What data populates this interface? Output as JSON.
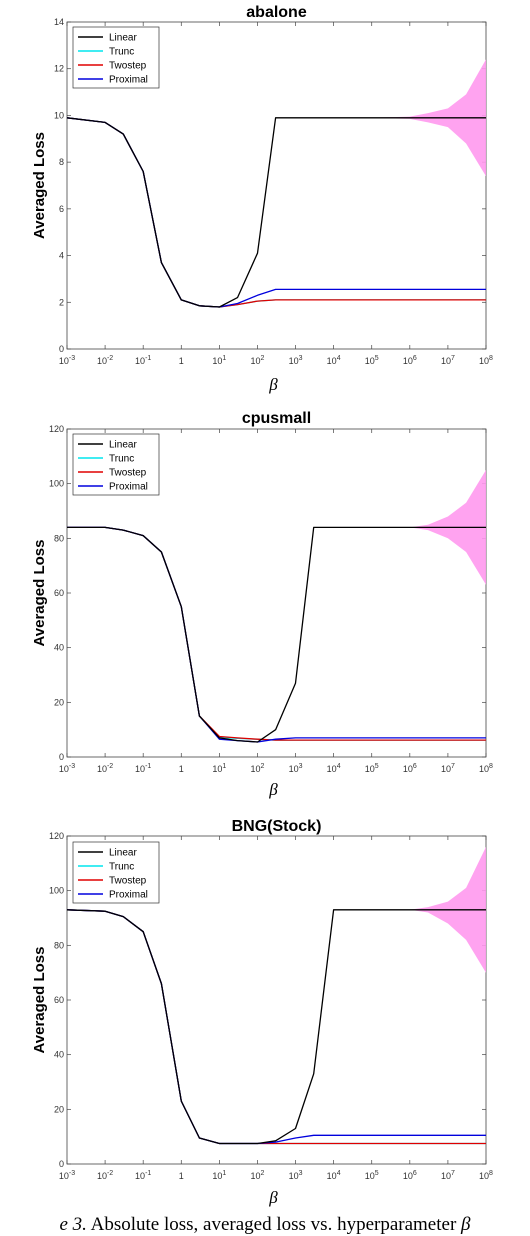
{
  "caption": {
    "prefix": "e 3.",
    "text": " Absolute loss, averaged loss vs. hyperparameter ",
    "symbol": "β"
  },
  "colors": {
    "Linear": "#000000",
    "Trunc": "#00e5ee",
    "Twostep": "#e00000",
    "Proximal": "#0000dd",
    "band": "#ff99ee"
  },
  "chart_data": [
    {
      "type": "line",
      "title": "abalone",
      "xlabel": "β",
      "ylabel": "Averaged Loss",
      "xscale": "log",
      "xlim": [
        0.001,
        100000000
      ],
      "ylim": [
        0,
        14
      ],
      "yticks": [
        0,
        2,
        4,
        6,
        8,
        10,
        12,
        14
      ],
      "ytick_labels": [
        "0",
        "2",
        "4",
        "6",
        "8",
        "10",
        "12",
        "14"
      ],
      "xticks": [
        0.001,
        0.01,
        0.1,
        1,
        10,
        100,
        1000,
        10000,
        100000,
        1000000,
        10000000,
        100000000
      ],
      "xtick_labels": [
        {
          "base": "10",
          "exp": "-3"
        },
        {
          "base": "10",
          "exp": "-2"
        },
        {
          "base": "10",
          "exp": "-1"
        },
        {
          "base": "1",
          "exp": ""
        },
        {
          "base": "10",
          "exp": "1"
        },
        {
          "base": "10",
          "exp": "2"
        },
        {
          "base": "10",
          "exp": "3"
        },
        {
          "base": "10",
          "exp": "4"
        },
        {
          "base": "10",
          "exp": "5"
        },
        {
          "base": "10",
          "exp": "6"
        },
        {
          "base": "10",
          "exp": "7"
        },
        {
          "base": "10",
          "exp": "8"
        }
      ],
      "legend": {
        "position": "top-left",
        "entries": [
          "Linear",
          "Trunc",
          "Twostep",
          "Proximal"
        ]
      },
      "series": [
        {
          "name": "Linear",
          "x": [
            0.001,
            0.01,
            0.03,
            0.1,
            0.3,
            1,
            3,
            10,
            30,
            100,
            300,
            1000,
            100000000
          ],
          "y": [
            9.9,
            9.7,
            9.2,
            7.6,
            3.7,
            2.1,
            1.85,
            1.8,
            2.2,
            4.1,
            9.9,
            9.9,
            9.9
          ]
        },
        {
          "name": "Trunc",
          "x": [
            0.001,
            0.01,
            0.03,
            0.1,
            0.3,
            1,
            3,
            10,
            30,
            100,
            300,
            1000,
            100000000
          ],
          "y": [
            9.9,
            9.7,
            9.2,
            7.6,
            3.7,
            2.1,
            1.85,
            1.8,
            1.9,
            2.05,
            2.1,
            2.1,
            2.1
          ]
        },
        {
          "name": "Twostep",
          "x": [
            0.001,
            0.01,
            0.03,
            0.1,
            0.3,
            1,
            3,
            10,
            30,
            100,
            300,
            1000,
            100000000
          ],
          "y": [
            9.9,
            9.7,
            9.2,
            7.6,
            3.7,
            2.1,
            1.85,
            1.8,
            1.9,
            2.05,
            2.1,
            2.1,
            2.1
          ]
        },
        {
          "name": "Proximal",
          "x": [
            0.001,
            0.01,
            0.03,
            0.1,
            0.3,
            1,
            3,
            10,
            30,
            100,
            300,
            1000,
            100000000
          ],
          "y": [
            9.9,
            9.7,
            9.2,
            7.6,
            3.7,
            2.1,
            1.85,
            1.8,
            1.95,
            2.3,
            2.55,
            2.55,
            2.55
          ]
        }
      ],
      "band": {
        "x": [
          100000,
          1000000,
          3000000,
          10000000,
          30000000,
          100000000
        ],
        "lower": [
          9.9,
          9.85,
          9.7,
          9.5,
          8.8,
          7.4
        ],
        "upper": [
          9.9,
          9.95,
          10.1,
          10.3,
          10.9,
          12.4
        ]
      }
    },
    {
      "type": "line",
      "title": "cpusmall",
      "xlabel": "β",
      "ylabel": "Averaged Loss",
      "xscale": "log",
      "xlim": [
        0.001,
        100000000
      ],
      "ylim": [
        0,
        120
      ],
      "yticks": [
        0,
        20,
        40,
        60,
        80,
        100,
        120
      ],
      "ytick_labels": [
        "0",
        "20",
        "40",
        "60",
        "80",
        "100",
        "120"
      ],
      "xticks": [
        0.001,
        0.01,
        0.1,
        1,
        10,
        100,
        1000,
        10000,
        100000,
        1000000,
        10000000,
        100000000
      ],
      "xtick_labels": [
        {
          "base": "10",
          "exp": "-3"
        },
        {
          "base": "10",
          "exp": "-2"
        },
        {
          "base": "10",
          "exp": "-1"
        },
        {
          "base": "1",
          "exp": ""
        },
        {
          "base": "10",
          "exp": "1"
        },
        {
          "base": "10",
          "exp": "2"
        },
        {
          "base": "10",
          "exp": "3"
        },
        {
          "base": "10",
          "exp": "4"
        },
        {
          "base": "10",
          "exp": "5"
        },
        {
          "base": "10",
          "exp": "6"
        },
        {
          "base": "10",
          "exp": "7"
        },
        {
          "base": "10",
          "exp": "8"
        }
      ],
      "legend": {
        "position": "top-left",
        "entries": [
          "Linear",
          "Trunc",
          "Twostep",
          "Proximal"
        ]
      },
      "series": [
        {
          "name": "Linear",
          "x": [
            0.001,
            0.01,
            0.03,
            0.1,
            0.3,
            1,
            3,
            10,
            30,
            100,
            300,
            1000,
            3000,
            100000000
          ],
          "y": [
            84,
            84,
            83,
            81,
            75,
            55,
            15,
            7,
            6,
            5.5,
            10,
            27,
            84,
            84
          ]
        },
        {
          "name": "Trunc",
          "x": [
            0.001,
            0.01,
            0.03,
            0.1,
            0.3,
            1,
            3,
            10,
            30,
            100,
            300,
            1000,
            3000,
            100000000
          ],
          "y": [
            84,
            84,
            83,
            81,
            75,
            55,
            15,
            7.2,
            6.8,
            6.5,
            6.2,
            6.2,
            6.2,
            6.2
          ]
        },
        {
          "name": "Twostep",
          "x": [
            0.001,
            0.01,
            0.03,
            0.1,
            0.3,
            1,
            3,
            10,
            30,
            100,
            300,
            1000,
            3000,
            100000000
          ],
          "y": [
            84,
            84,
            83,
            81,
            75,
            55,
            15,
            7.5,
            7,
            6.5,
            6.2,
            6.2,
            6.2,
            6.2
          ]
        },
        {
          "name": "Proximal",
          "x": [
            0.001,
            0.01,
            0.03,
            0.1,
            0.3,
            1,
            3,
            10,
            30,
            100,
            300,
            1000,
            3000,
            100000000
          ],
          "y": [
            84,
            84,
            83,
            81,
            75,
            55,
            15,
            6.5,
            6,
            5.5,
            6.5,
            7,
            7,
            7
          ]
        }
      ],
      "band": {
        "x": [
          1000000,
          3000000,
          10000000,
          30000000,
          100000000
        ],
        "lower": [
          84,
          83,
          80,
          75,
          63
        ],
        "upper": [
          84,
          85,
          88,
          93,
          105
        ]
      }
    },
    {
      "type": "line",
      "title": "BNG(Stock)",
      "xlabel": "β",
      "ylabel": "Averaged Loss",
      "xscale": "log",
      "xlim": [
        0.001,
        100000000
      ],
      "ylim": [
        0,
        120
      ],
      "yticks": [
        0,
        20,
        40,
        60,
        80,
        100,
        120
      ],
      "ytick_labels": [
        "0",
        "20",
        "40",
        "60",
        "80",
        "100",
        "120"
      ],
      "xticks": [
        0.001,
        0.01,
        0.1,
        1,
        10,
        100,
        1000,
        10000,
        100000,
        1000000,
        10000000,
        100000000
      ],
      "xtick_labels": [
        {
          "base": "10",
          "exp": "-3"
        },
        {
          "base": "10",
          "exp": "-2"
        },
        {
          "base": "10",
          "exp": "-1"
        },
        {
          "base": "1",
          "exp": ""
        },
        {
          "base": "10",
          "exp": "1"
        },
        {
          "base": "10",
          "exp": "2"
        },
        {
          "base": "10",
          "exp": "3"
        },
        {
          "base": "10",
          "exp": "4"
        },
        {
          "base": "10",
          "exp": "5"
        },
        {
          "base": "10",
          "exp": "6"
        },
        {
          "base": "10",
          "exp": "7"
        },
        {
          "base": "10",
          "exp": "8"
        }
      ],
      "legend": {
        "position": "top-left",
        "entries": [
          "Linear",
          "Trunc",
          "Twostep",
          "Proximal"
        ]
      },
      "series": [
        {
          "name": "Linear",
          "x": [
            0.001,
            0.01,
            0.03,
            0.1,
            0.3,
            1,
            3,
            10,
            30,
            100,
            300,
            1000,
            3000,
            10000,
            100000000
          ],
          "y": [
            93,
            92.5,
            90.5,
            85,
            66,
            23,
            9.5,
            7.5,
            7.5,
            7.5,
            8.5,
            13,
            33,
            93,
            93
          ]
        },
        {
          "name": "Trunc",
          "x": [
            0.001,
            0.01,
            0.03,
            0.1,
            0.3,
            1,
            3,
            10,
            30,
            100,
            300,
            1000,
            3000,
            10000,
            100000000
          ],
          "y": [
            93,
            92.5,
            90.5,
            85,
            66,
            23,
            9.5,
            7.5,
            7.5,
            7.5,
            7.5,
            7.5,
            7.5,
            7.5,
            7.5
          ]
        },
        {
          "name": "Twostep",
          "x": [
            0.001,
            0.01,
            0.03,
            0.1,
            0.3,
            1,
            3,
            10,
            30,
            100,
            300,
            1000,
            3000,
            10000,
            100000000
          ],
          "y": [
            93,
            92.5,
            90.5,
            85,
            66,
            23,
            9.5,
            7.5,
            7.5,
            7.5,
            7.5,
            7.5,
            7.5,
            7.5,
            7.5
          ]
        },
        {
          "name": "Proximal",
          "x": [
            0.001,
            0.01,
            0.03,
            0.1,
            0.3,
            1,
            3,
            10,
            30,
            100,
            300,
            1000,
            3000,
            10000,
            100000000
          ],
          "y": [
            93,
            92.5,
            90.5,
            85,
            66,
            23,
            9.5,
            7.5,
            7.5,
            7.5,
            8,
            9.5,
            10.5,
            10.5,
            10.5
          ]
        }
      ],
      "band": {
        "x": [
          1000000,
          3000000,
          10000000,
          30000000,
          100000000
        ],
        "lower": [
          93,
          92,
          88,
          82,
          70
        ],
        "upper": [
          93,
          94,
          96,
          101,
          116
        ]
      }
    }
  ]
}
